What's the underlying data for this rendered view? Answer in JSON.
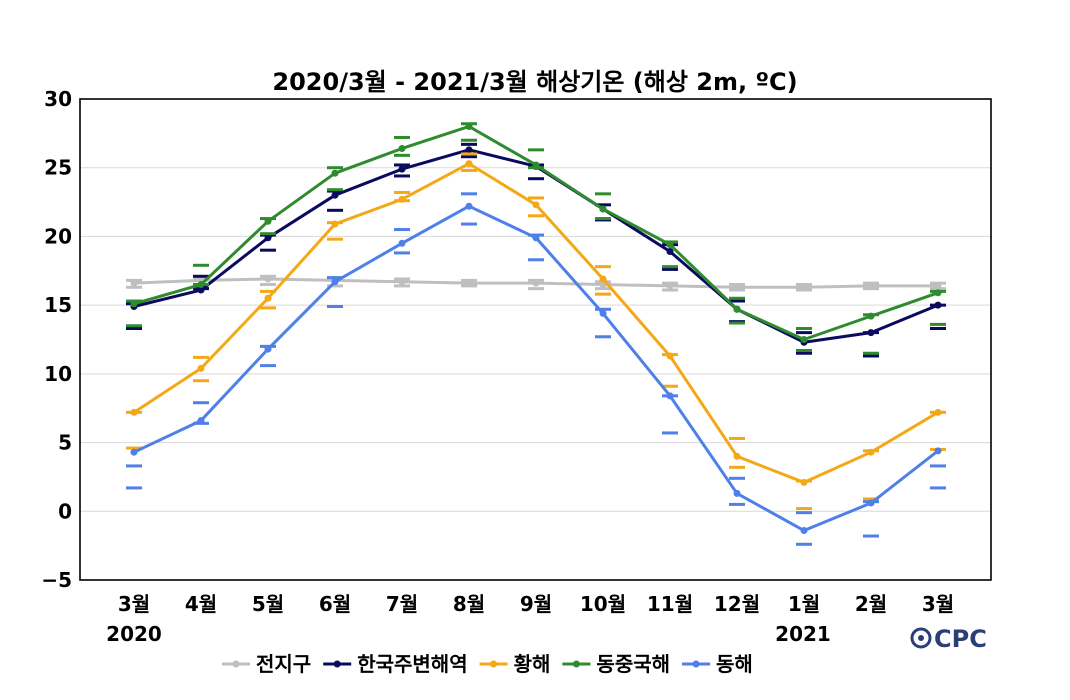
{
  "chart_data": {
    "type": "line",
    "title": "2020/3월 - 2021/3월 해상기온 (해상 2m, ºC)",
    "categories": [
      "3월",
      "4월",
      "5월",
      "6월",
      "7월",
      "8월",
      "9월",
      "10월",
      "11월",
      "12월",
      "1월",
      "2월",
      "3월"
    ],
    "year_labels": {
      "first": "2020",
      "second": "2021"
    },
    "ylim": [
      -5,
      30
    ],
    "yticks": [
      "30",
      "25",
      "20",
      "15",
      "10",
      "5",
      "0",
      "−5"
    ],
    "ytick_values": [
      30,
      25,
      20,
      15,
      10,
      5,
      0,
      -5
    ],
    "grid": true,
    "legend_position": "bottom",
    "series": [
      {
        "name": "전지구",
        "color": "#bfbfbf",
        "values": [
          16.6,
          16.8,
          16.9,
          16.8,
          16.7,
          16.6,
          16.6,
          16.5,
          16.4,
          16.3,
          16.3,
          16.4,
          16.4
        ],
        "upper": [
          16.8,
          17.0,
          17.1,
          17.0,
          16.9,
          16.8,
          16.8,
          16.7,
          16.6,
          16.5,
          16.5,
          16.6,
          16.6
        ],
        "lower": [
          16.3,
          16.4,
          16.5,
          16.4,
          16.4,
          16.4,
          16.2,
          16.2,
          16.1,
          16.1,
          16.1,
          16.2,
          16.2
        ]
      },
      {
        "name": "한국주변해역",
        "color": "#0a0a5e",
        "values": [
          14.9,
          16.1,
          19.9,
          23.0,
          24.9,
          26.3,
          25.1,
          22.0,
          18.9,
          14.7,
          12.3,
          13.0,
          15.0
        ],
        "upper": [
          15.1,
          17.1,
          20.1,
          23.3,
          25.2,
          26.7,
          25.2,
          22.3,
          19.4,
          15.3,
          13.0,
          13.0,
          15.0
        ],
        "lower": [
          13.3,
          16.2,
          19.0,
          21.9,
          24.4,
          25.8,
          24.2,
          21.2,
          17.6,
          13.8,
          11.5,
          11.3,
          13.3
        ]
      },
      {
        "name": "황해",
        "color": "#f5a815",
        "values": [
          7.2,
          10.4,
          15.5,
          20.9,
          22.7,
          25.3,
          22.3,
          16.9,
          11.3,
          4.0,
          2.1,
          4.3,
          7.2
        ],
        "upper": [
          7.2,
          11.2,
          16.0,
          21.0,
          23.2,
          26.0,
          22.8,
          17.8,
          11.4,
          5.3,
          2.2,
          4.4,
          7.2
        ],
        "lower": [
          4.6,
          9.5,
          14.8,
          19.8,
          22.6,
          24.8,
          21.5,
          15.8,
          9.1,
          3.2,
          0.2,
          0.9,
          4.5
        ]
      },
      {
        "name": "동중국해",
        "color": "#2e8b2e",
        "values": [
          15.1,
          16.5,
          21.1,
          24.6,
          26.4,
          28.0,
          25.2,
          22.0,
          19.4,
          14.7,
          12.5,
          14.2,
          15.9
        ],
        "upper": [
          15.3,
          17.9,
          21.3,
          25.0,
          27.2,
          28.2,
          26.3,
          23.1,
          19.6,
          15.5,
          13.3,
          14.3,
          16.0
        ],
        "lower": [
          13.5,
          16.5,
          20.2,
          23.4,
          25.9,
          27.0,
          25.0,
          21.3,
          17.8,
          13.7,
          11.7,
          11.5,
          13.6
        ]
      },
      {
        "name": "동해",
        "color": "#4f7fe8",
        "values": [
          4.3,
          6.6,
          11.8,
          16.7,
          19.5,
          22.2,
          19.9,
          14.4,
          8.4,
          1.3,
          -1.4,
          0.6,
          4.4
        ],
        "upper": [
          3.3,
          7.9,
          12.0,
          17.0,
          20.5,
          23.1,
          20.1,
          14.7,
          8.4,
          2.4,
          -0.1,
          0.7,
          3.3
        ],
        "lower": [
          1.7,
          6.4,
          10.6,
          14.9,
          18.8,
          20.9,
          18.3,
          12.7,
          5.7,
          0.5,
          -2.4,
          -1.8,
          1.7
        ]
      }
    ]
  },
  "logo": {
    "text": "CPC"
  }
}
